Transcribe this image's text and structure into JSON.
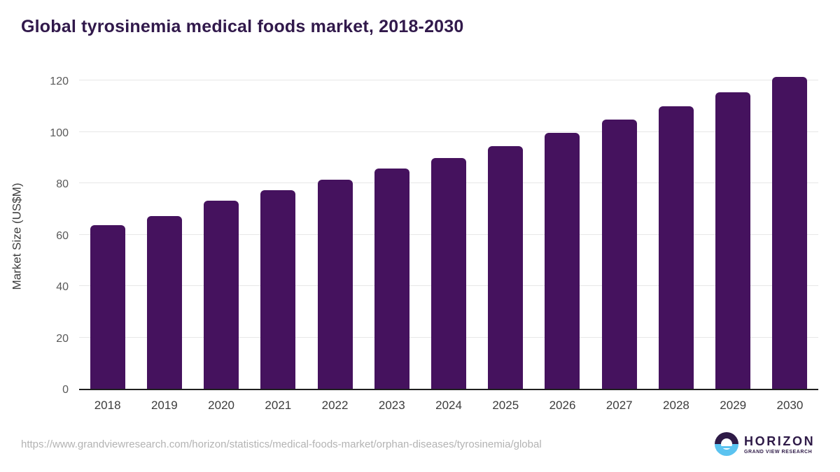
{
  "title": "Global tyrosinemia medical foods market, 2018-2030",
  "chart_data": {
    "type": "bar",
    "title": "Global tyrosinemia medical foods market, 2018-2030",
    "categories": [
      "2018",
      "2019",
      "2020",
      "2021",
      "2022",
      "2023",
      "2024",
      "2025",
      "2026",
      "2027",
      "2028",
      "2029",
      "2030"
    ],
    "values": [
      63.6,
      67.1,
      73.2,
      77.2,
      81.3,
      85.6,
      89.8,
      94.4,
      99.5,
      104.7,
      110.0,
      115.4,
      121.4
    ],
    "xlabel": "",
    "ylabel": "Market Size (US$M)",
    "ylim": [
      0,
      120
    ],
    "ytick_step": 20,
    "grid": true,
    "legend": "none",
    "bar_color": "#45125e"
  },
  "footer": {
    "source_url": "https://www.grandviewresearch.com/horizon/statistics/medical-foods-market/orphan-diseases/tyrosinemia/global"
  },
  "logo": {
    "name": "HORIZON",
    "subtitle": "GRAND VIEW RESEARCH",
    "icon": "sunset-horizon-icon",
    "colors": {
      "dark": "#2e1a47",
      "blue": "#5bc3f0"
    }
  },
  "colors": {
    "title": "#31194b",
    "bar": "#45125e",
    "gridline": "#e7e7e7",
    "axis": "#1f1f1f",
    "y_tick": "#5a5a5a",
    "x_tick": "#3c3c3c",
    "url": "#b3b3b3",
    "background": "#ffffff"
  }
}
